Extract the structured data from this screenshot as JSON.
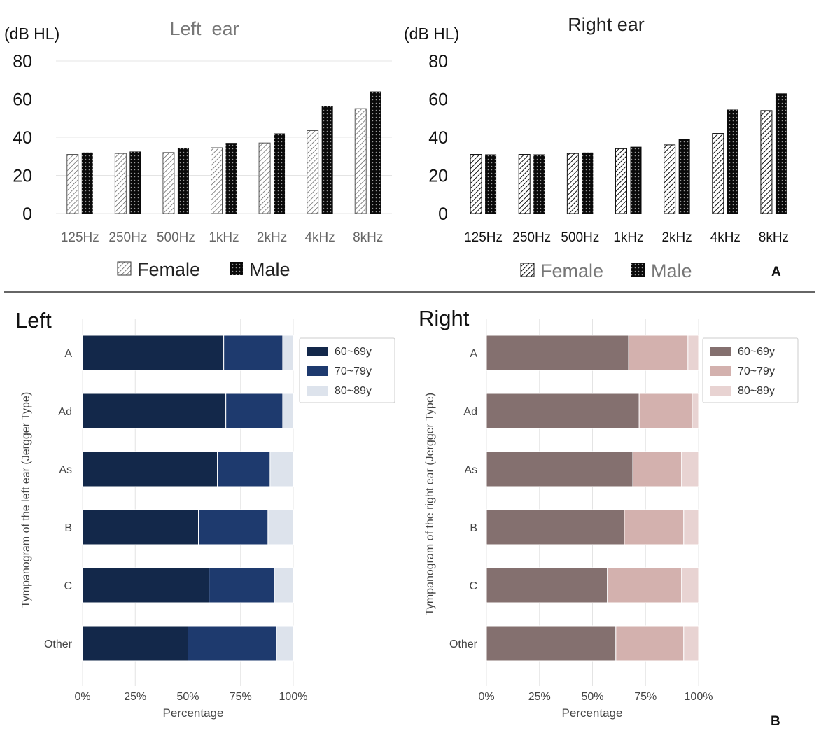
{
  "colors": {
    "left_ages": [
      "#13284a",
      "#1e3a6e",
      "#dde3ec"
    ],
    "right_ages": [
      "#84706f",
      "#d3b1ae",
      "#e8d3d2"
    ],
    "male_bar": "#0a0a0a",
    "female_hatch": "#444444",
    "gridline": "#e4e4e4",
    "divider": "#333333"
  },
  "panel_labels": {
    "a": "A",
    "b": "B"
  },
  "chart_data": [
    {
      "type": "bar",
      "title": "Left  ear",
      "ylabel": "(dB HL)",
      "ylim": [
        0,
        80
      ],
      "yticks": [
        "0",
        "20",
        "40",
        "60",
        "80"
      ],
      "categories": [
        "125Hz",
        "250Hz",
        "500Hz",
        "1kHz",
        "2kHz",
        "4kHz",
        "8kHz"
      ],
      "series": [
        {
          "name": "Female",
          "values": [
            31,
            31.5,
            32,
            34.5,
            37,
            43.5,
            55
          ]
        },
        {
          "name": "Male",
          "values": [
            32,
            32.5,
            34.5,
            37,
            42,
            56.5,
            64
          ]
        }
      ],
      "grid": true,
      "legend": "bottom"
    },
    {
      "type": "bar",
      "title": "Right ear",
      "ylabel": "(dB HL)",
      "ylim": [
        0,
        80
      ],
      "yticks": [
        "0",
        "20",
        "40",
        "60",
        "80"
      ],
      "categories": [
        "125Hz",
        "250Hz",
        "500Hz",
        "1kHz",
        "2kHz",
        "4kHz",
        "8kHz"
      ],
      "series": [
        {
          "name": "Female",
          "values": [
            31,
            31,
            31.5,
            34,
            36,
            42,
            54
          ]
        },
        {
          "name": "Male",
          "values": [
            31,
            31,
            32,
            35,
            39,
            54.5,
            63
          ]
        }
      ],
      "grid": false,
      "legend": "bottom"
    },
    {
      "type": "bar",
      "orientation": "horizontal-stacked",
      "title": "Left",
      "ylabel": "Tympanogram of the left ear (Jergger Type)",
      "xlabel": "Percentage",
      "xlim": [
        0,
        100
      ],
      "xticks": [
        "0%",
        "25%",
        "50%",
        "75%",
        "100%"
      ],
      "categories": [
        "A",
        "Ad",
        "As",
        "B",
        "C",
        "Other"
      ],
      "series": [
        {
          "name": "60~69y",
          "values": [
            67,
            68,
            64,
            55,
            60,
            50
          ]
        },
        {
          "name": "70~79y",
          "values": [
            28,
            27,
            25,
            33,
            31,
            42
          ]
        },
        {
          "name": "80~89y",
          "values": [
            5,
            5,
            11,
            12,
            9,
            8
          ]
        }
      ],
      "grid": true,
      "legend": "top-right"
    },
    {
      "type": "bar",
      "orientation": "horizontal-stacked",
      "title": "Right",
      "ylabel": "Tympanogram of the right ear (Jergger Type)",
      "xlabel": "Percentage",
      "xlim": [
        0,
        100
      ],
      "xticks": [
        "0%",
        "25%",
        "50%",
        "75%",
        "100%"
      ],
      "categories": [
        "A",
        "Ad",
        "As",
        "B",
        "C",
        "Other"
      ],
      "series": [
        {
          "name": "60~69y",
          "values": [
            67,
            72,
            69,
            65,
            57,
            61
          ]
        },
        {
          "name": "70~79y",
          "values": [
            28,
            25,
            23,
            28,
            35,
            32
          ]
        },
        {
          "name": "80~89y",
          "values": [
            5,
            3,
            8,
            7,
            8,
            7
          ]
        }
      ],
      "grid": true,
      "legend": "top-right"
    }
  ]
}
